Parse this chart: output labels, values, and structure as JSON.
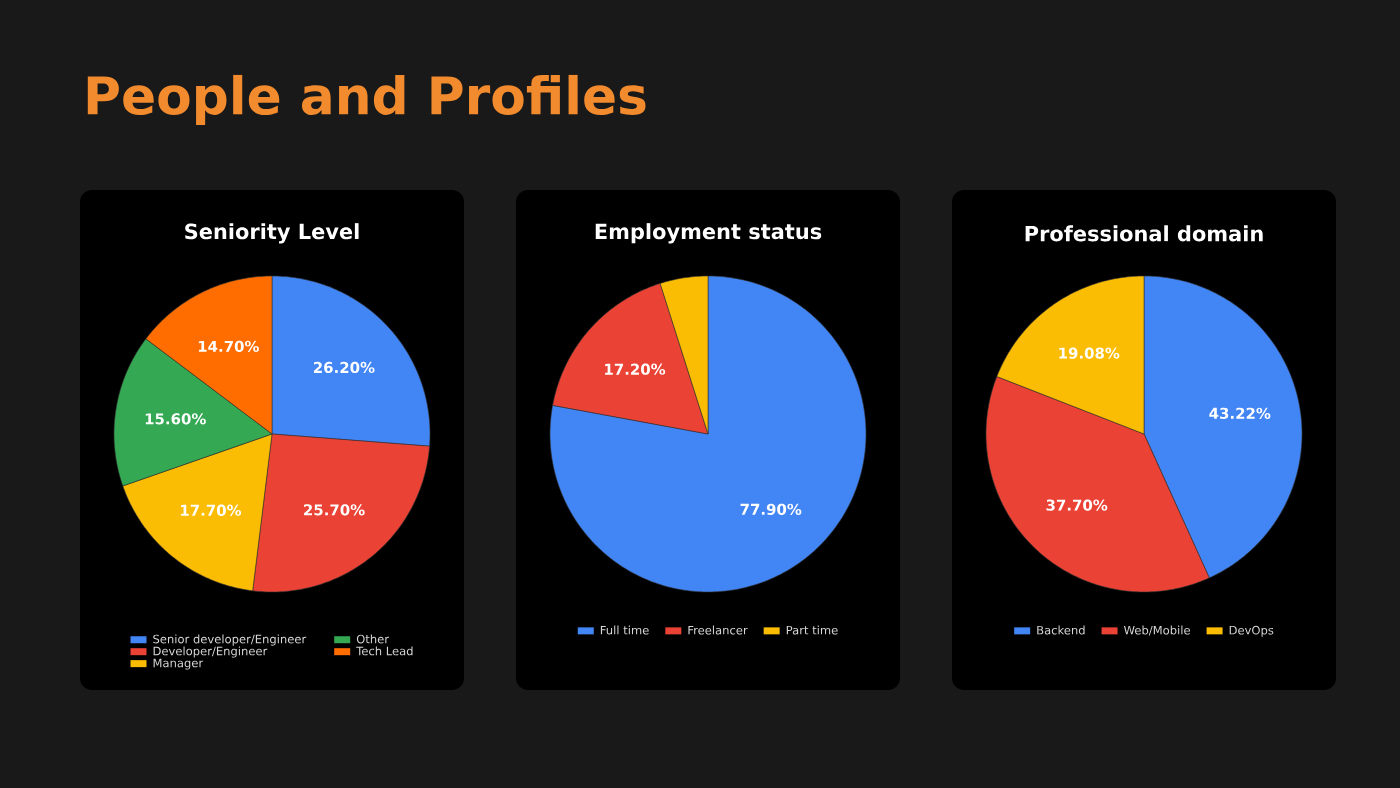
{
  "chart_data": [
    {
      "type": "other",
      "title": "People and Profiles"
    },
    {
      "type": "pie",
      "title": "Seniority Level",
      "categories": [
        "Senior developer/Engineer",
        "Developer/Engineer",
        "Manager",
        "Other",
        "Tech Lead"
      ],
      "values": [
        26.2,
        25.7,
        17.7,
        15.6,
        14.7
      ],
      "value_labels": [
        "26.20%",
        "25.70%",
        "17.70%",
        "15.60%",
        "14.70%"
      ],
      "colors": [
        "#4285f4",
        "#ea4335",
        "#fbbc04",
        "#34a853",
        "#ff6d01"
      ],
      "legend": "bottom"
    },
    {
      "type": "pie",
      "title": "Employment status",
      "categories": [
        "Full time",
        "Freelancer",
        "Part time"
      ],
      "values": [
        77.9,
        17.2,
        4.9
      ],
      "value_labels": [
        "77.90%",
        "17.20%",
        null
      ],
      "colors": [
        "#4285f4",
        "#ea4335",
        "#fbbc04"
      ],
      "legend": "bottom"
    },
    {
      "type": "pie",
      "title": "Professional domain",
      "categories": [
        "Backend",
        "Web/Mobile",
        "DevOps"
      ],
      "values": [
        43.22,
        37.7,
        19.08
      ],
      "value_labels": [
        "43.22%",
        "37.70%",
        "19.08%"
      ],
      "colors": [
        "#4285f4",
        "#ea4335",
        "#fbbc04"
      ],
      "legend": "bottom"
    }
  ]
}
